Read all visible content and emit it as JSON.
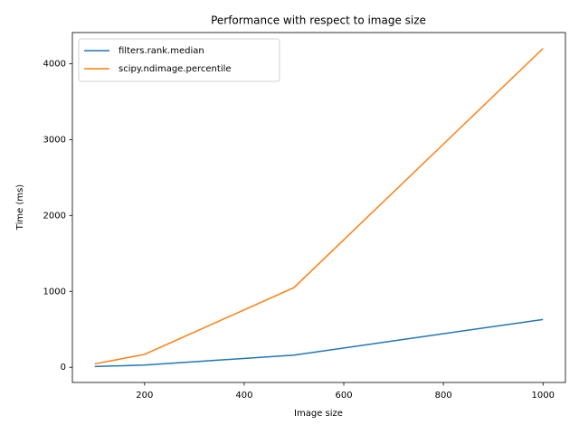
{
  "chart_data": {
    "type": "line",
    "title": "Performance with respect to image size",
    "x_label": "Image size",
    "y_label": "Time (ms)",
    "x": [
      100,
      200,
      500,
      1000
    ],
    "series": [
      {
        "name": "filters.rank.median",
        "color": "#1f77b4",
        "values": [
          10,
          30,
          160,
          630
        ]
      },
      {
        "name": "scipy.ndimage.percentile",
        "color": "#ff7f0e",
        "values": [
          45,
          170,
          1050,
          4200
        ]
      }
    ],
    "xlim": [
      55,
      1045
    ],
    "ylim": [
      -200,
      4410
    ],
    "xticks": [
      200,
      400,
      600,
      800,
      1000
    ],
    "yticks": [
      0,
      1000,
      2000,
      3000,
      4000
    ],
    "grid": false,
    "legend": "upper left"
  }
}
